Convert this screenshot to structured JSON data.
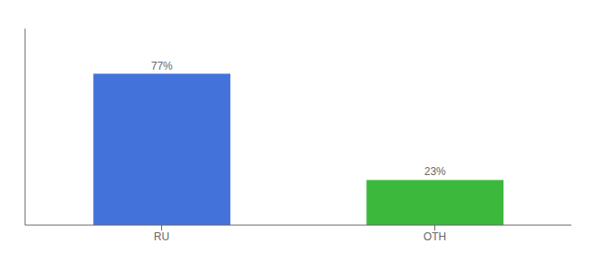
{
  "chart_data": {
    "type": "bar",
    "categories": [
      "RU",
      "OTH"
    ],
    "values": [
      77,
      23
    ],
    "value_labels": [
      "77%",
      "23%"
    ],
    "data_labels": true,
    "colors": [
      "#4472db",
      "#3cb83c"
    ],
    "ylim": [
      0,
      100
    ],
    "tick_labels": "x"
  }
}
